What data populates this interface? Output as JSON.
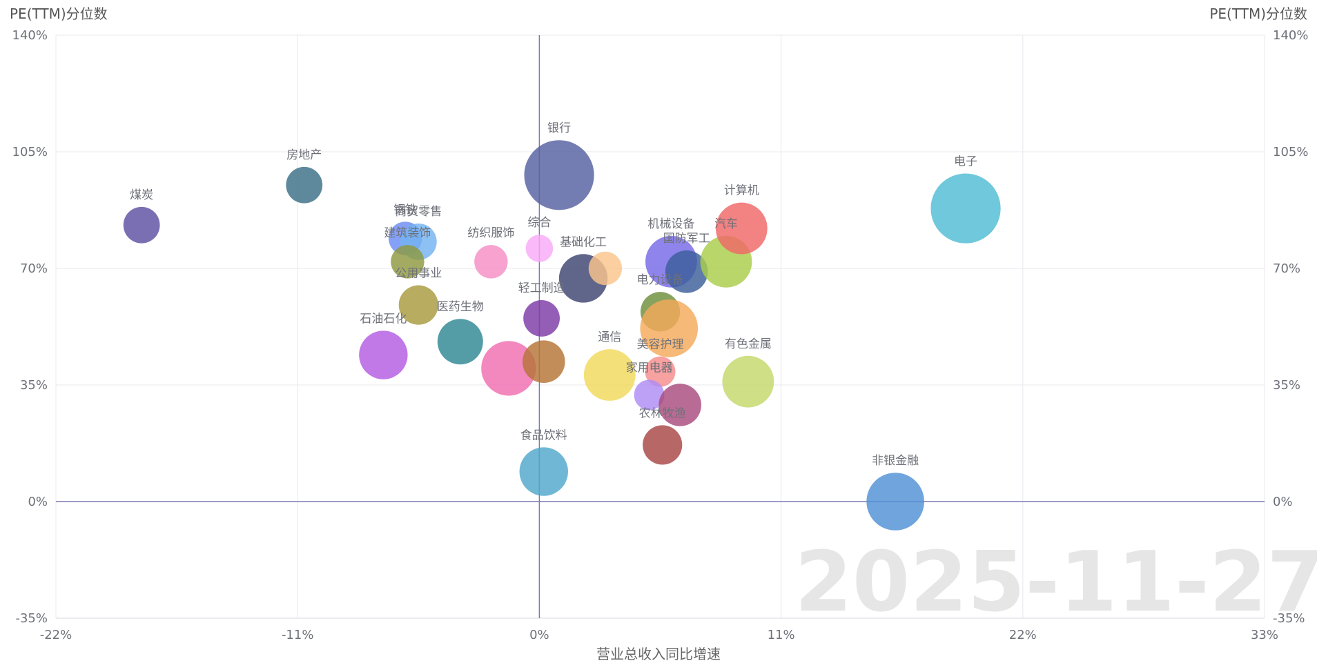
{
  "chart_data": {
    "type": "scatter",
    "subtype": "bubble",
    "date_watermark": "2025-11-27",
    "ylabel_left": "PE(TTM)分位数",
    "ylabel_right": "PE(TTM)分位数",
    "xlabel": "营业总收入同比增速",
    "xlim": [
      -22,
      33
    ],
    "ylim": [
      -35,
      140
    ],
    "x_ticks": [
      "-22%",
      "-11%",
      "0%",
      "11%",
      "22%",
      "33%"
    ],
    "y_ticks": [
      "140%",
      "105%",
      "70%",
      "35%",
      "0%",
      "-35%"
    ],
    "grid": true,
    "legend": "none",
    "reference_lines": {
      "x": 0,
      "y": 0,
      "color": "#7b78b5"
    },
    "points": [
      {
        "name": "煤炭",
        "x": -18.1,
        "y": 83,
        "size": 1.2,
        "color": "#5e4fa2"
      },
      {
        "name": "房地产",
        "x": -10.7,
        "y": 95,
        "size": 1.2,
        "color": "#3a6f86"
      },
      {
        "name": "钢铁",
        "x": -6.1,
        "y": 79,
        "size": 1.1,
        "color": "#6a8cf5"
      },
      {
        "name": "商贸零售",
        "x": -5.5,
        "y": 78,
        "size": 1.2,
        "color": "#74b3f0"
      },
      {
        "name": "纺织服饰",
        "x": -2.2,
        "y": 72,
        "size": 1.1,
        "color": "#f58ec4"
      },
      {
        "name": "综合",
        "x": 0,
        "y": 76,
        "size": 0.9,
        "color": "#f9a9f7"
      },
      {
        "name": "建筑装饰",
        "x": -6.0,
        "y": 72,
        "size": 1.1,
        "color": "#8f9840"
      },
      {
        "name": "公用事业",
        "x": -5.5,
        "y": 59,
        "size": 1.3,
        "color": "#a89a3e"
      },
      {
        "name": "石油石化",
        "x": -7.1,
        "y": 44,
        "size": 1.6,
        "color": "#b35be2"
      },
      {
        "name": "医药生物",
        "x": -3.6,
        "y": 48,
        "size": 1.5,
        "color": "#2e8894"
      },
      {
        "name": "银行",
        "x": 0.9,
        "y": 98,
        "size": 2.3,
        "color": "#5660a0"
      },
      {
        "name": "轻工制造",
        "x": 0.1,
        "y": 55,
        "size": 1.2,
        "color": "#7d3aa6"
      },
      {
        "name": "基础化工",
        "x": 2.0,
        "y": 67,
        "size": 1.6,
        "color": "#3d4470"
      },
      {
        "name": "基础化工-2",
        "x": 3.0,
        "y": 70,
        "size": 1.1,
        "color": "#fbc48c"
      },
      {
        "name": "医药生物-2",
        "x": -1.4,
        "y": 40,
        "size": 1.8,
        "color": "#f06eb1"
      },
      {
        "name": "医药生物-3",
        "x": 0.2,
        "y": 42,
        "size": 1.4,
        "color": "#b67436"
      },
      {
        "name": "通信",
        "x": 3.2,
        "y": 38,
        "size": 1.7,
        "color": "#f1d95a"
      },
      {
        "name": "食品饮料",
        "x": 0.2,
        "y": 9,
        "size": 1.6,
        "color": "#4fa7cc"
      },
      {
        "name": "机械设备",
        "x": 6.0,
        "y": 72,
        "size": 1.7,
        "color": "#7569e6"
      },
      {
        "name": "国防军工",
        "x": 6.7,
        "y": 69,
        "size": 1.4,
        "color": "#3b5e9a"
      },
      {
        "name": "汽车",
        "x": 8.5,
        "y": 72,
        "size": 1.7,
        "color": "#a9cd4b"
      },
      {
        "name": "计算机",
        "x": 9.2,
        "y": 82,
        "size": 1.7,
        "color": "#f06666"
      },
      {
        "name": "电力设备",
        "x": 5.5,
        "y": 57,
        "size": 1.3,
        "color": "#6c8f3a"
      },
      {
        "name": "电力设备-2",
        "x": 5.9,
        "y": 52,
        "size": 1.9,
        "color": "#f4a95a"
      },
      {
        "name": "美容护理",
        "x": 5.5,
        "y": 39,
        "size": 1.0,
        "color": "#f58c8c"
      },
      {
        "name": "家用电器",
        "x": 5.0,
        "y": 32,
        "size": 1.0,
        "color": "#ae8cf5"
      },
      {
        "name": "家用电器-2",
        "x": 6.4,
        "y": 29,
        "size": 1.4,
        "color": "#a84a7c"
      },
      {
        "name": "农林牧渔",
        "x": 5.6,
        "y": 17,
        "size": 1.3,
        "color": "#a84646"
      },
      {
        "name": "有色金属",
        "x": 9.5,
        "y": 36,
        "size": 1.7,
        "color": "#c5d86a"
      },
      {
        "name": "电子",
        "x": 19.4,
        "y": 88,
        "size": 2.3,
        "color": "#4fbcd4"
      },
      {
        "name": "非银金融",
        "x": 16.2,
        "y": 0,
        "size": 1.9,
        "color": "#4f90d6"
      }
    ],
    "labels": [
      {
        "text": "煤炭",
        "for": "煤炭"
      },
      {
        "text": "房地产",
        "for": "房地产"
      },
      {
        "text": "钢铁",
        "for": "钢铁"
      },
      {
        "text": "商贸零售",
        "for": "商贸零售"
      },
      {
        "text": "纺织服饰",
        "for": "纺织服饰"
      },
      {
        "text": "综合",
        "for": "综合"
      },
      {
        "text": "建筑装饰",
        "for": "建筑装饰"
      },
      {
        "text": "公用事业",
        "for": "公用事业"
      },
      {
        "text": "石油石化",
        "for": "石油石化"
      },
      {
        "text": "医药生物",
        "for": "医药生物"
      },
      {
        "text": "银行",
        "for": "银行"
      },
      {
        "text": "轻工制造",
        "for": "轻工制造"
      },
      {
        "text": "基础化工",
        "for": "基础化工"
      },
      {
        "text": "通信",
        "for": "通信"
      },
      {
        "text": "食品饮料",
        "for": "食品饮料"
      },
      {
        "text": "机械设备",
        "for": "机械设备"
      },
      {
        "text": "国防军工",
        "for": "国防军工"
      },
      {
        "text": "汽车",
        "for": "汽车"
      },
      {
        "text": "计算机",
        "for": "计算机"
      },
      {
        "text": "电力设备",
        "for": "电力设备"
      },
      {
        "text": "美容护理",
        "for": "美容护理"
      },
      {
        "text": "家用电器",
        "for": "家用电器"
      },
      {
        "text": "农林牧渔",
        "for": "农林牧渔"
      },
      {
        "text": "有色金属",
        "for": "有色金属"
      },
      {
        "text": "电子",
        "for": "电子"
      },
      {
        "text": "非银金融",
        "for": "非银金融"
      }
    ]
  }
}
